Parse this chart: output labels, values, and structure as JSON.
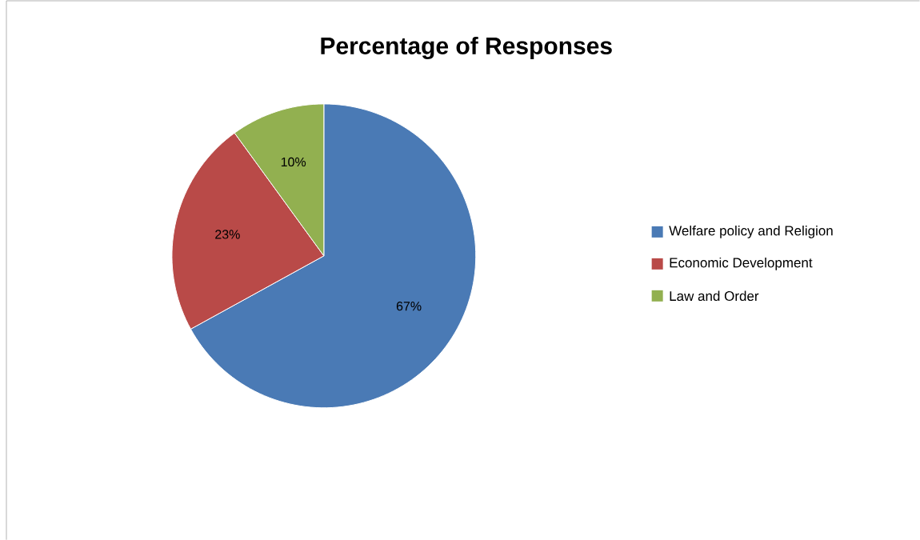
{
  "chart_data": {
    "type": "pie",
    "title": "Percentage of Responses",
    "categories": [
      "Welfare policy and Religion",
      "Economic Development",
      "Law and Order"
    ],
    "values": [
      67,
      23,
      10
    ],
    "value_labels": [
      "67%",
      "23%",
      "10%"
    ],
    "colors": [
      "#4a7ab5",
      "#b94a48",
      "#92b050"
    ],
    "legend": "right"
  }
}
